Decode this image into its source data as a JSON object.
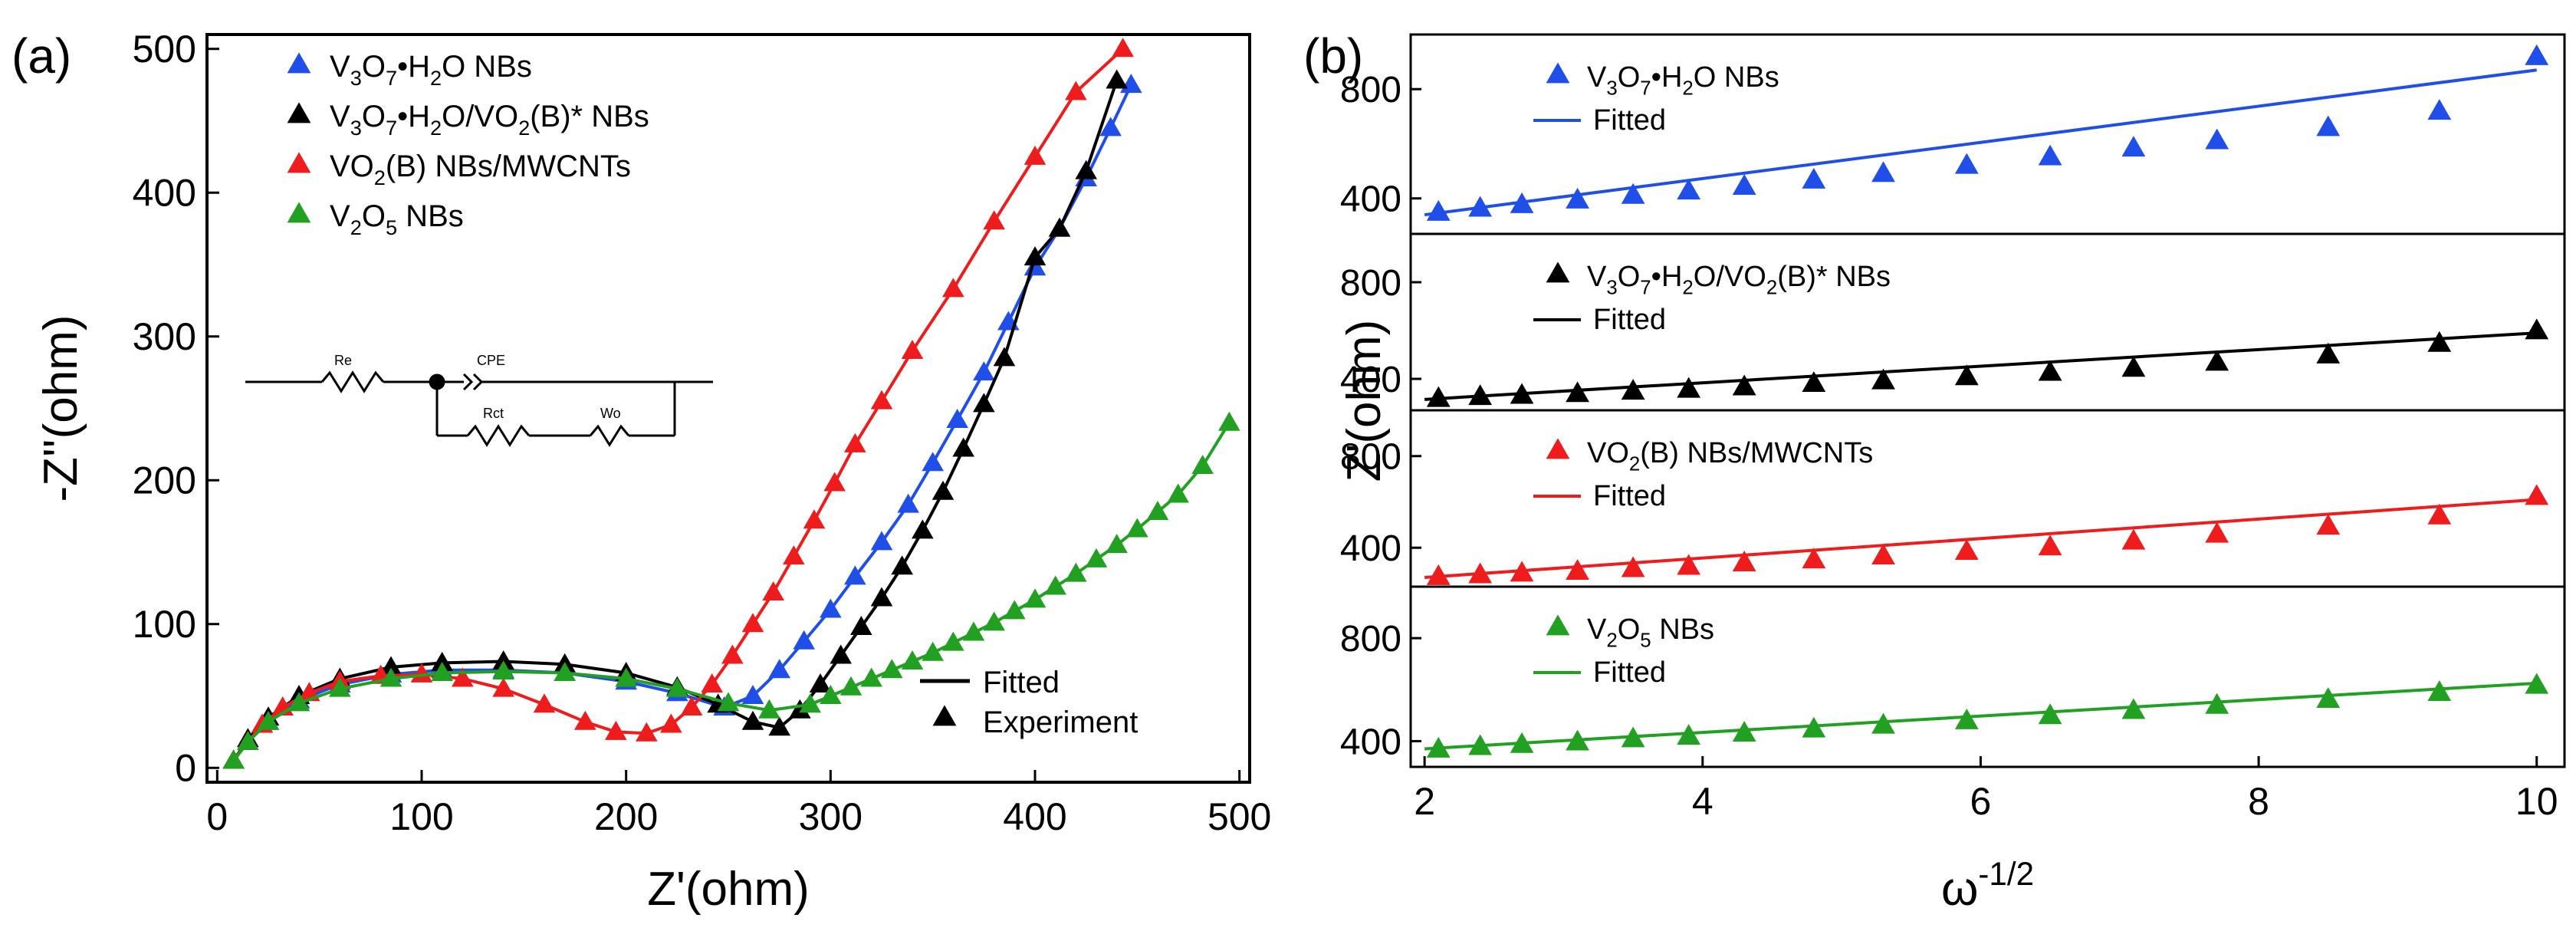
{
  "figure": {
    "panel_a_label": "(a)",
    "panel_b_label": "(b)"
  },
  "circuit": {
    "re": "Re",
    "cpe": "CPE",
    "rct": "Rct",
    "wo": "Wo"
  },
  "chart_data": [
    {
      "type": "scatter",
      "panel": "(a)",
      "title": "",
      "xlabel": "Z'(ohm)",
      "ylabel": "-Z''(ohm)",
      "xlim": [
        -5,
        505
      ],
      "ylim": [
        -10,
        510
      ],
      "xticks": [
        0,
        100,
        200,
        300,
        400,
        500
      ],
      "yticks": [
        0,
        100,
        200,
        300,
        400,
        500
      ],
      "legend_position": "top-left",
      "style_legend": [
        {
          "label": "Fitted",
          "kind": "line",
          "color": "#000000"
        },
        {
          "label": "Experiment",
          "kind": "marker",
          "color": "#000000"
        }
      ],
      "series": [
        {
          "name": "V3O7•H2O NBs",
          "legend": [
            {
              "t": "V"
            },
            {
              "t": "3",
              "s": 1
            },
            {
              "t": "O"
            },
            {
              "t": "7",
              "s": 1
            },
            {
              "t": "•H"
            },
            {
              "t": "2",
              "s": 1
            },
            {
              "t": "O NBs"
            }
          ],
          "color": "#1f4fe8",
          "x": [
            8,
            15,
            25,
            40,
            60,
            85,
            110,
            140,
            170,
            200,
            225,
            248,
            262,
            275,
            287,
            300,
            312,
            325,
            338,
            350,
            362,
            375,
            387,
            400,
            412,
            425,
            437,
            447
          ],
          "y": [
            5,
            18,
            32,
            47,
            58,
            65,
            68,
            68,
            66,
            60,
            52,
            42,
            50,
            68,
            88,
            110,
            133,
            157,
            183,
            212,
            242,
            275,
            310,
            348,
            375,
            410,
            445,
            475
          ]
        },
        {
          "name": "V3O7•H2O/VO2(B)* NBs",
          "legend": [
            {
              "t": "V"
            },
            {
              "t": "3",
              "s": 1
            },
            {
              "t": "O"
            },
            {
              "t": "7",
              "s": 1
            },
            {
              "t": "•H"
            },
            {
              "t": "2",
              "s": 1
            },
            {
              "t": "O/VO"
            },
            {
              "t": "2",
              "s": 1
            },
            {
              "t": "(B)* NBs"
            }
          ],
          "color": "#000000",
          "x": [
            8,
            15,
            25,
            40,
            60,
            85,
            110,
            140,
            170,
            200,
            225,
            245,
            262,
            275,
            285,
            295,
            305,
            315,
            325,
            335,
            345,
            355,
            365,
            375,
            385,
            400,
            412,
            425,
            440
          ],
          "y": [
            5,
            20,
            35,
            50,
            62,
            70,
            73,
            74,
            72,
            66,
            56,
            44,
            32,
            28,
            40,
            58,
            78,
            98,
            118,
            140,
            165,
            192,
            222,
            253,
            285,
            355,
            375,
            415,
            478
          ]
        },
        {
          "name": "VO2(B) NBs/MWCNTs",
          "legend": [
            {
              "t": "VO"
            },
            {
              "t": "2",
              "s": 1
            },
            {
              "t": "(B) NBs/MWCNTs"
            }
          ],
          "color": "#ee1c1c",
          "x": [
            8,
            15,
            22,
            32,
            45,
            60,
            80,
            100,
            120,
            140,
            160,
            180,
            195,
            210,
            222,
            232,
            242,
            252,
            262,
            272,
            282,
            292,
            302,
            312,
            325,
            340,
            360,
            380,
            400,
            420,
            443
          ],
          "y": [
            5,
            18,
            30,
            42,
            52,
            60,
            64,
            65,
            62,
            55,
            44,
            32,
            25,
            24,
            30,
            42,
            58,
            78,
            100,
            122,
            147,
            172,
            198,
            225,
            255,
            290,
            333,
            380,
            425,
            470,
            500
          ]
        },
        {
          "name": "V2O5 NBs",
          "legend": [
            {
              "t": "V"
            },
            {
              "t": "2",
              "s": 1
            },
            {
              "t": "O"
            },
            {
              "t": "5",
              "s": 1
            },
            {
              "t": " NBs"
            }
          ],
          "color": "#22a022",
          "x": [
            8,
            15,
            25,
            40,
            60,
            85,
            110,
            140,
            170,
            200,
            225,
            250,
            270,
            290,
            300,
            310,
            320,
            330,
            340,
            350,
            360,
            370,
            380,
            390,
            400,
            410,
            420,
            430,
            440,
            450,
            460,
            470,
            482,
            495
          ],
          "y": [
            5,
            18,
            32,
            45,
            55,
            62,
            66,
            67,
            66,
            62,
            55,
            45,
            40,
            44,
            50,
            56,
            62,
            68,
            74,
            80,
            87,
            94,
            101,
            109,
            117,
            126,
            135,
            145,
            155,
            166,
            178,
            190,
            210,
            240
          ]
        }
      ]
    },
    {
      "type": "scatter",
      "panel": "(b)",
      "title": "",
      "xlabel": "ω-1/2",
      "xlabel_parts": [
        {
          "t": "ω"
        },
        {
          "t": "-1/2",
          "s": 2
        }
      ],
      "ylabel": "Z'(ohm)",
      "xlim": [
        1.9,
        10.2
      ],
      "xticks": [
        2,
        4,
        6,
        8,
        10
      ],
      "legend_position": "top-left",
      "fitted_label": "Fitted",
      "subplots": [
        {
          "name": "V3O7•H2O NBs",
          "legend": [
            {
              "t": "V"
            },
            {
              "t": "3",
              "s": 1
            },
            {
              "t": "O"
            },
            {
              "t": "7",
              "s": 1
            },
            {
              "t": "•H"
            },
            {
              "t": "2",
              "s": 1
            },
            {
              "t": "O NBs"
            }
          ],
          "color": "#1f4fe8",
          "ylim": [
            270,
            1000
          ],
          "yticks": [
            400,
            800
          ],
          "x": [
            2.1,
            2.4,
            2.7,
            3.1,
            3.5,
            3.9,
            4.3,
            4.8,
            5.3,
            5.9,
            6.5,
            7.1,
            7.7,
            8.5,
            9.3,
            10.0
          ],
          "y": [
            350,
            365,
            378,
            395,
            412,
            428,
            445,
            468,
            492,
            522,
            553,
            585,
            612,
            660,
            720,
            920
          ],
          "fit": [
            [
              2.0,
              340
            ],
            [
              10.0,
              870
            ]
          ]
        },
        {
          "name": "V3O7•H2O/VO2(B)* NBs",
          "legend": [
            {
              "t": "V"
            },
            {
              "t": "3",
              "s": 1
            },
            {
              "t": "O"
            },
            {
              "t": "7",
              "s": 1
            },
            {
              "t": "•H"
            },
            {
              "t": "2",
              "s": 1
            },
            {
              "t": "O/VO"
            },
            {
              "t": "2",
              "s": 1
            },
            {
              "t": "(B)* NBs"
            }
          ],
          "color": "#000000",
          "ylim": [
            270,
            1000
          ],
          "yticks": [
            400,
            800
          ],
          "x": [
            2.1,
            2.4,
            2.7,
            3.1,
            3.5,
            3.9,
            4.3,
            4.8,
            5.3,
            5.9,
            6.5,
            7.1,
            7.7,
            8.5,
            9.3,
            10.0
          ],
          "y": [
            320,
            328,
            333,
            340,
            350,
            358,
            368,
            382,
            393,
            410,
            428,
            445,
            470,
            500,
            548,
            600
          ],
          "fit": [
            [
              2.0,
              315
            ],
            [
              10.0,
              590
            ]
          ]
        },
        {
          "name": "VO2(B) NBs/MWCNTs",
          "legend": [
            {
              "t": "VO"
            },
            {
              "t": "2",
              "s": 1
            },
            {
              "t": "(B) NBs/MWCNTs"
            }
          ],
          "color": "#ee1c1c",
          "ylim": [
            230,
            1000
          ],
          "yticks": [
            400,
            800
          ],
          "x": [
            2.1,
            2.4,
            2.7,
            3.1,
            3.5,
            3.9,
            4.3,
            4.8,
            5.3,
            5.9,
            6.5,
            7.1,
            7.7,
            8.5,
            9.3,
            10.0
          ],
          "y": [
            275,
            283,
            290,
            298,
            310,
            320,
            335,
            348,
            365,
            385,
            405,
            430,
            460,
            495,
            540,
            625
          ],
          "fit": [
            [
              2.0,
              270
            ],
            [
              10.0,
              610
            ]
          ]
        },
        {
          "name": "V2O5 NBs",
          "legend": [
            {
              "t": "V"
            },
            {
              "t": "2",
              "s": 1
            },
            {
              "t": "O"
            },
            {
              "t": "5",
              "s": 1
            },
            {
              "t": " NBs"
            }
          ],
          "color": "#22a022",
          "ylim": [
            300,
            1000
          ],
          "yticks": [
            400,
            800
          ],
          "x": [
            2.1,
            2.4,
            2.7,
            3.1,
            3.5,
            3.9,
            4.3,
            4.8,
            5.3,
            5.9,
            6.5,
            7.1,
            7.7,
            8.5,
            9.3,
            10.0
          ],
          "y": [
            370,
            380,
            388,
            398,
            410,
            420,
            432,
            448,
            463,
            480,
            500,
            520,
            540,
            563,
            590,
            618
          ],
          "fit": [
            [
              2.0,
              370
            ],
            [
              10.0,
              625
            ]
          ]
        }
      ]
    }
  ]
}
